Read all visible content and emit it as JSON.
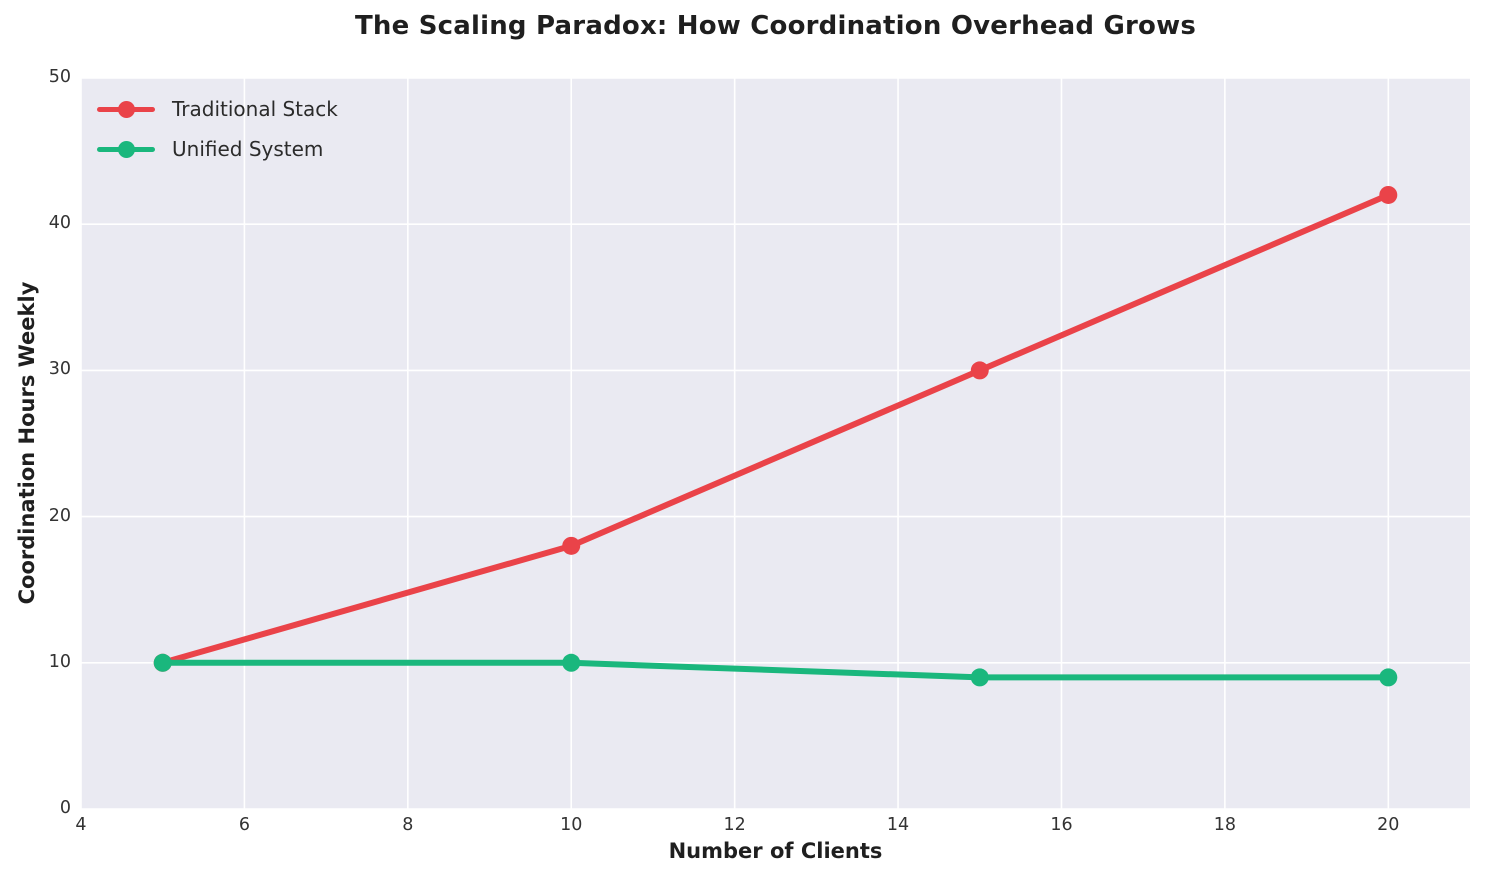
{
  "chart_data": {
    "type": "line",
    "title": "The Scaling Paradox: How Coordination Overhead Grows",
    "xlabel": "Number of Clients",
    "ylabel": "Coordination Hours Weekly",
    "x": [
      5,
      10,
      15,
      20
    ],
    "series": [
      {
        "name": "Traditional Stack",
        "values": [
          10,
          18,
          30,
          42
        ],
        "color": "#ea4349"
      },
      {
        "name": "Unified System",
        "values": [
          10,
          10,
          9,
          9
        ],
        "color": "#1ab77d"
      }
    ],
    "xlim": [
      4,
      21
    ],
    "ylim": [
      0,
      50
    ],
    "xticks": [
      4,
      6,
      8,
      10,
      12,
      14,
      16,
      18,
      20
    ],
    "yticks": [
      0,
      10,
      20,
      30,
      40,
      50
    ],
    "grid": true,
    "legend_position": "upper-left",
    "plot_background": "#eaeaf2",
    "grid_color": "#ffffff",
    "line_width": 6,
    "marker_radius": 9
  }
}
